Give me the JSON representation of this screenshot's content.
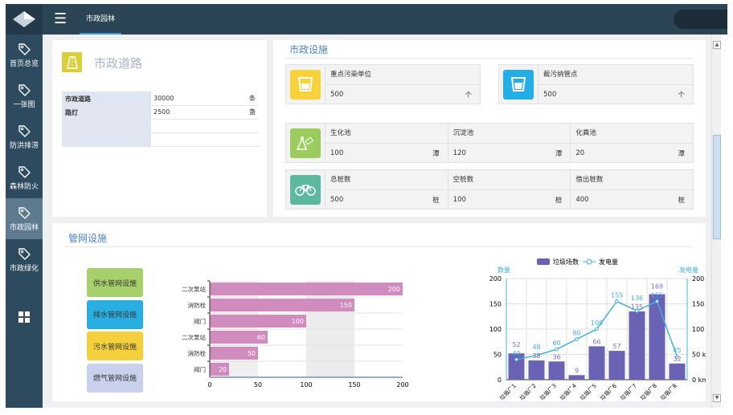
{
  "topbar": {
    "tab": "市政园林"
  },
  "sidebar": {
    "items": [
      {
        "label": "首页总览"
      },
      {
        "label": "一张图"
      },
      {
        "label": "防洪排涝"
      },
      {
        "label": "森林防火"
      },
      {
        "label": "市政园林",
        "active": true
      },
      {
        "label": "市政绿化"
      }
    ]
  },
  "road": {
    "title": "市政道路",
    "rows": [
      {
        "k": "市政道路",
        "v": "30000",
        "u": "条"
      },
      {
        "k": "路灯",
        "v": "2500",
        "u": "盏"
      },
      {
        "k": "",
        "v": "",
        "u": ""
      },
      {
        "k": "",
        "v": "",
        "u": ""
      }
    ]
  },
  "facilities": {
    "title": "市政设施",
    "pollution": {
      "label": "重点污染单位",
      "value": "500",
      "unit": "个",
      "color": "#f7d23a"
    },
    "intercept": {
      "label": "截污纳管点",
      "value": "500",
      "unit": "个",
      "color": "#25aee6"
    },
    "pools": {
      "color": "#9ccc5e",
      "cells": [
        {
          "label": "生化池",
          "value": "100",
          "unit": "潭"
        },
        {
          "label": "沉淀池",
          "value": "120",
          "unit": "潭"
        },
        {
          "label": "化粪池",
          "value": "20",
          "unit": "潭"
        }
      ]
    },
    "bikes": {
      "color": "#5db8a0",
      "cells": [
        {
          "label": "总桩数",
          "value": "500",
          "unit": "桩"
        },
        {
          "label": "空桩数",
          "value": "100",
          "unit": "桩"
        },
        {
          "label": "借出桩数",
          "value": "400",
          "unit": "桩"
        }
      ]
    }
  },
  "pipes": {
    "title": "管网设施",
    "buttons": [
      {
        "label": "供水管网设施",
        "color": "#a7cf6b"
      },
      {
        "label": "排水管网设施",
        "color": "#2aaee2"
      },
      {
        "label": "污水管网设施",
        "color": "#f4d13c"
      },
      {
        "label": "燃气管网设施",
        "color": "#c9d1ec"
      }
    ]
  },
  "chart_data": [
    {
      "type": "bar",
      "orientation": "horizontal",
      "categories": [
        "二次泵站",
        "消防栓",
        "阀门",
        "二次泵站",
        "消防栓",
        "阀门"
      ],
      "values": [
        200,
        150,
        100,
        60,
        50,
        20
      ],
      "xlim": [
        0,
        200
      ],
      "xticks": [
        "0",
        "50",
        "100",
        "150",
        "200"
      ],
      "color": "#d08cbf"
    },
    {
      "type": "bar+line",
      "categories": [
        "垃圾厂1",
        "垃圾厂2",
        "垃圾厂3",
        "垃圾厂4",
        "垃圾厂5",
        "垃圾厂6",
        "垃圾厂7",
        "垃圾厂8",
        "垃圾厂8"
      ],
      "series": [
        {
          "name": "垃圾场数",
          "type": "bar",
          "axis": "left",
          "values": [
            52,
            38,
            36,
            9,
            66,
            57,
            135,
            169,
            32
          ],
          "color": "#6a62b4"
        },
        {
          "name": "发电量",
          "type": "line",
          "axis": "right",
          "values": [
            40,
            48,
            60,
            80,
            100,
            155,
            136,
            155,
            45
          ],
          "color": "#3fb2e0"
        }
      ],
      "ylabel": "数量",
      "y2label": "发电量",
      "ylim": [
        0,
        200
      ],
      "yticks": [
        "0",
        "50",
        "100",
        "150",
        "200"
      ],
      "y2ticks": [
        "0 km",
        "50 km",
        "100 km",
        "150 km",
        "200 km"
      ],
      "legend": "top"
    }
  ]
}
